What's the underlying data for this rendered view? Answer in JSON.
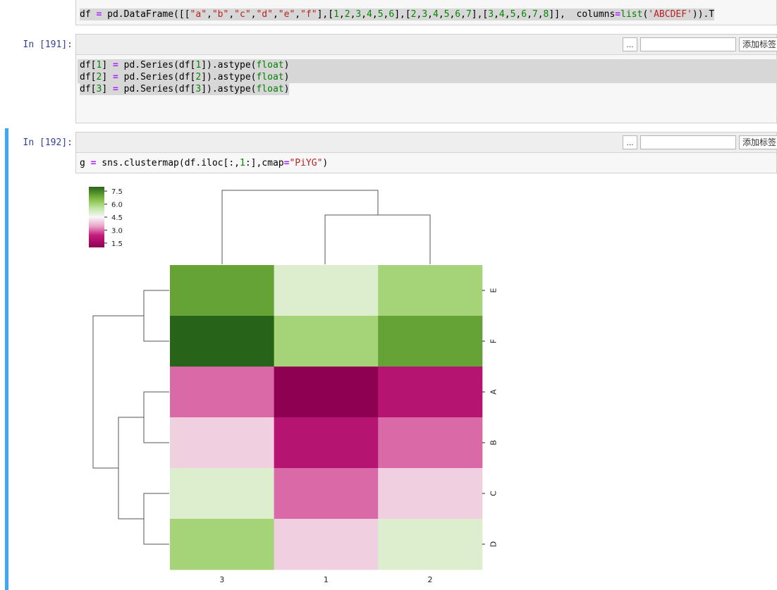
{
  "cells": {
    "prev": {
      "code": [
        [
          [
            "df ",
            ""
          ],
          [
            "=",
            "kw"
          ],
          [
            " pd.DataFrame([[",
            ""
          ],
          [
            "\"a\"",
            "str"
          ],
          [
            ",",
            ""
          ],
          [
            "\"b\"",
            "str"
          ],
          [
            ",",
            ""
          ],
          [
            "\"c\"",
            "str"
          ],
          [
            ",",
            ""
          ],
          [
            "\"d\"",
            "str"
          ],
          [
            ",",
            ""
          ],
          [
            "\"e\"",
            "str"
          ],
          [
            ",",
            ""
          ],
          [
            "\"f\"",
            "str"
          ],
          [
            "],[",
            ""
          ],
          [
            "1",
            "num"
          ],
          [
            ",",
            ""
          ],
          [
            "2",
            "num"
          ],
          [
            ",",
            ""
          ],
          [
            "3",
            "num"
          ],
          [
            ",",
            ""
          ],
          [
            "4",
            "num"
          ],
          [
            ",",
            ""
          ],
          [
            "5",
            "num"
          ],
          [
            ",",
            ""
          ],
          [
            "6",
            "num"
          ],
          [
            "],[",
            ""
          ],
          [
            "2",
            "num"
          ],
          [
            ",",
            ""
          ],
          [
            "3",
            "num"
          ],
          [
            ",",
            ""
          ],
          [
            "4",
            "num"
          ],
          [
            ",",
            ""
          ],
          [
            "5",
            "num"
          ],
          [
            ",",
            ""
          ],
          [
            "6",
            "num"
          ],
          [
            ",",
            ""
          ],
          [
            "7",
            "num"
          ],
          [
            "],[",
            ""
          ],
          [
            "3",
            "num"
          ],
          [
            ",",
            ""
          ],
          [
            "4",
            "num"
          ],
          [
            ",",
            ""
          ],
          [
            "5",
            "num"
          ],
          [
            ",",
            ""
          ],
          [
            "6",
            "num"
          ],
          [
            ",",
            ""
          ],
          [
            "7",
            "num"
          ],
          [
            ",",
            ""
          ],
          [
            "8",
            "num"
          ],
          [
            "]],  columns",
            ""
          ],
          [
            "=",
            "kw"
          ],
          [
            "list",
            "bi"
          ],
          [
            "(",
            ""
          ],
          [
            "'ABCDEF'",
            "str"
          ],
          [
            ")).T",
            ""
          ]
        ]
      ]
    },
    "cell191": {
      "prompt": "In [191]:",
      "code": [
        [
          [
            "df[",
            ""
          ],
          [
            "1",
            "num"
          ],
          [
            "] ",
            ""
          ],
          [
            "=",
            "kw"
          ],
          [
            " pd.Series(df[",
            ""
          ],
          [
            "1",
            "num"
          ],
          [
            "]).astype(",
            ""
          ],
          [
            "float",
            "bi"
          ],
          [
            ")",
            ""
          ]
        ],
        [
          [
            "df[",
            ""
          ],
          [
            "2",
            "num"
          ],
          [
            "] ",
            ""
          ],
          [
            "=",
            "kw"
          ],
          [
            " pd.Series(df[",
            ""
          ],
          [
            "2",
            "num"
          ],
          [
            "]).astype(",
            ""
          ],
          [
            "float",
            "bi"
          ],
          [
            ")",
            ""
          ]
        ],
        [
          [
            "df[",
            ""
          ],
          [
            "3",
            "num"
          ],
          [
            "] ",
            ""
          ],
          [
            "=",
            "kw"
          ],
          [
            " pd.Series(df[",
            ""
          ],
          [
            "3",
            "num"
          ],
          [
            "]).astype(",
            ""
          ],
          [
            "float",
            "bi"
          ],
          [
            ")",
            ""
          ]
        ]
      ]
    },
    "cell192": {
      "prompt": "In [192]:",
      "code": [
        [
          [
            "g ",
            ""
          ],
          [
            "=",
            "kw"
          ],
          [
            " sns.clustermap(df.iloc[:,",
            ""
          ],
          [
            "1",
            "num"
          ],
          [
            ":],cmap",
            ""
          ],
          [
            "=",
            "kw"
          ],
          [
            "\"PiYG\"",
            "str"
          ],
          [
            ")",
            ""
          ]
        ]
      ]
    }
  },
  "toolbar": {
    "ellipsis_label": "...",
    "tag_input_value": "",
    "add_tag_label": "添加标签"
  },
  "colors": {
    "accent_selected": "#42a5f5",
    "prompt": "#303f9f",
    "dendrogram": "#555555"
  },
  "chart_data": {
    "type": "heatmap",
    "title": "",
    "cmap": "PiYG",
    "columns": [
      "3",
      "1",
      "2"
    ],
    "rows": [
      "E",
      "F",
      "A",
      "B",
      "C",
      "D"
    ],
    "values": [
      [
        7,
        5,
        6
      ],
      [
        8,
        6,
        7
      ],
      [
        3,
        1,
        2
      ],
      [
        4,
        2,
        3
      ],
      [
        5,
        3,
        4
      ],
      [
        6,
        4,
        5
      ]
    ],
    "colorbar": {
      "ticks": [
        "7.5",
        "6.0",
        "4.5",
        "3.0",
        "1.5"
      ],
      "range": [
        1,
        8
      ]
    },
    "col_dendrogram": "columns 1 and 2 merge first, then join column 3",
    "row_dendrogram": "E+F cluster; A+B and C+D merge, then join"
  }
}
